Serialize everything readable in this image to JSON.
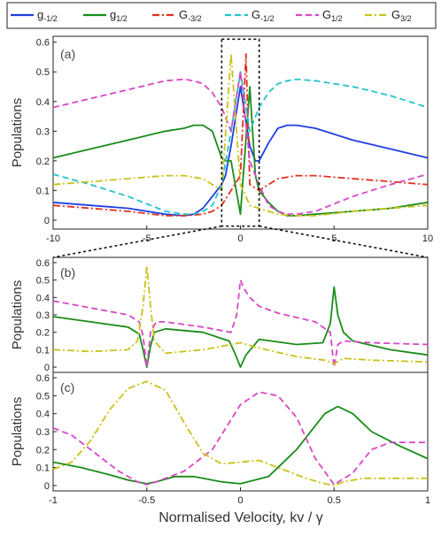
{
  "figure": {
    "xlabel": "Normalised Velocity, kv / γ"
  },
  "legend": [
    {
      "main": "g",
      "sub": "-1/2",
      "color": "#1f3fe0",
      "dash": "solid"
    },
    {
      "main": "g",
      "sub": "1/2",
      "color": "#1a8c1a",
      "dash": "solid"
    },
    {
      "main": "G",
      "sub": "-3/2",
      "color": "#e0301e",
      "dash": "dashdot"
    },
    {
      "main": "G",
      "sub": "-1/2",
      "color": "#22c4cc",
      "dash": "dashed"
    },
    {
      "main": "G",
      "sub": "1/2",
      "color": "#d846c8",
      "dash": "dashed"
    },
    {
      "main": "G",
      "sub": "3/2",
      "color": "#c9c21a",
      "dash": "dashdot"
    }
  ],
  "chart_data": [
    {
      "type": "line",
      "panel": "(a)",
      "ylabel": "Populations",
      "xlim": [
        -10,
        10
      ],
      "ylim": [
        -0.03,
        0.62
      ],
      "xticks": [
        -10,
        -5,
        0,
        5,
        10
      ],
      "yticks": [
        0,
        0.1,
        0.2,
        0.3,
        0.4,
        0.5,
        0.6
      ],
      "ytick_labels": [
        "0",
        "0.1",
        "0.2",
        "0.3",
        "0.4",
        "0.5",
        "0.6"
      ],
      "zoom_box": {
        "x": [
          -1,
          1
        ],
        "y": [
          -0.02,
          0.61
        ]
      },
      "series": [
        {
          "legend_index": 0,
          "x": [
            -10,
            -8,
            -6,
            -4,
            -3,
            -2.5,
            -2,
            -1.5,
            -1,
            -0.8,
            -0.5,
            0,
            0.5,
            0.8,
            1,
            1.5,
            2,
            2.5,
            3,
            4,
            6,
            8,
            10
          ],
          "y": [
            0.06,
            0.05,
            0.04,
            0.02,
            0.015,
            0.02,
            0.04,
            0.08,
            0.12,
            0.15,
            0.25,
            0.45,
            0.25,
            0.2,
            0.2,
            0.26,
            0.31,
            0.32,
            0.32,
            0.31,
            0.27,
            0.24,
            0.21
          ]
        },
        {
          "legend_index": 1,
          "x": [
            -10,
            -8,
            -6,
            -4,
            -3,
            -2.5,
            -2,
            -1.5,
            -1,
            -0.8,
            -0.5,
            0,
            0.5,
            0.8,
            1,
            1.5,
            2,
            2.5,
            3,
            4,
            6,
            8,
            10
          ],
          "y": [
            0.21,
            0.24,
            0.27,
            0.3,
            0.31,
            0.32,
            0.32,
            0.3,
            0.21,
            0.2,
            0.2,
            0.02,
            0.45,
            0.15,
            0.1,
            0.06,
            0.03,
            0.015,
            0.015,
            0.02,
            0.03,
            0.04,
            0.06
          ]
        },
        {
          "legend_index": 2,
          "x": [
            -10,
            -8,
            -6,
            -4,
            -3,
            -2,
            -1.5,
            -1,
            -0.5,
            0,
            0.3,
            0.5,
            1,
            1.5,
            2,
            3,
            4,
            6,
            8,
            10
          ],
          "y": [
            0.05,
            0.04,
            0.03,
            0.015,
            0.015,
            0.02,
            0.03,
            0.05,
            0.1,
            0.15,
            0.56,
            0.12,
            0.1,
            0.12,
            0.14,
            0.15,
            0.15,
            0.14,
            0.13,
            0.12
          ]
        },
        {
          "legend_index": 3,
          "x": [
            -10,
            -8,
            -6,
            -4,
            -3,
            -2.5,
            -2,
            -1.5,
            -1,
            -0.5,
            0,
            0.5,
            1,
            1.5,
            2,
            2.5,
            3,
            4,
            6,
            8,
            10
          ],
          "y": [
            0.155,
            0.12,
            0.08,
            0.03,
            0.02,
            0.02,
            0.03,
            0.05,
            0.12,
            0.3,
            0.5,
            0.3,
            0.38,
            0.43,
            0.46,
            0.47,
            0.475,
            0.47,
            0.45,
            0.42,
            0.38
          ]
        },
        {
          "legend_index": 4,
          "x": [
            -10,
            -8,
            -6,
            -4,
            -3,
            -2.5,
            -2,
            -1.5,
            -1,
            -0.5,
            0,
            0.5,
            1,
            1.5,
            2,
            2.5,
            3,
            4,
            6,
            8,
            10
          ],
          "y": [
            0.38,
            0.41,
            0.44,
            0.47,
            0.475,
            0.47,
            0.46,
            0.43,
            0.38,
            0.3,
            0.5,
            0.2,
            0.12,
            0.05,
            0.03,
            0.02,
            0.02,
            0.03,
            0.08,
            0.12,
            0.155
          ]
        },
        {
          "legend_index": 5,
          "x": [
            -10,
            -8,
            -6,
            -4,
            -3,
            -2,
            -1.5,
            -1,
            -0.5,
            0,
            0.5,
            1,
            1.5,
            2,
            3,
            4,
            6,
            8,
            10
          ],
          "y": [
            0.12,
            0.13,
            0.14,
            0.15,
            0.15,
            0.14,
            0.12,
            0.1,
            0.56,
            0.12,
            0.05,
            0.04,
            0.03,
            0.02,
            0.015,
            0.015,
            0.03,
            0.04,
            0.05
          ]
        }
      ]
    },
    {
      "type": "line",
      "panel": "(b)",
      "ylabel": "Populations",
      "xlim": [
        -1,
        1
      ],
      "ylim": [
        -0.03,
        0.63
      ],
      "yticks": [
        0,
        0.1,
        0.2,
        0.3,
        0.4,
        0.5,
        0.6
      ],
      "ytick_labels": [
        "0",
        "0.1",
        "0.2",
        "0.3",
        "0.4",
        "0.5",
        "0.6"
      ],
      "series": [
        {
          "legend_index": 1,
          "x": [
            -1,
            -0.8,
            -0.6,
            -0.54,
            -0.52,
            -0.5,
            -0.48,
            -0.46,
            -0.4,
            -0.2,
            -0.06,
            -0.03,
            0,
            0.03,
            0.1,
            0.3,
            0.44,
            0.48,
            0.5,
            0.52,
            0.55,
            0.6,
            0.8,
            1
          ],
          "y": [
            0.29,
            0.26,
            0.23,
            0.19,
            0.1,
            0.0,
            0.12,
            0.2,
            0.22,
            0.2,
            0.15,
            0.08,
            0.0,
            0.07,
            0.16,
            0.13,
            0.14,
            0.25,
            0.46,
            0.3,
            0.2,
            0.15,
            0.1,
            0.07
          ]
        },
        {
          "legend_index": 4,
          "x": [
            -1,
            -0.8,
            -0.6,
            -0.54,
            -0.52,
            -0.5,
            -0.48,
            -0.45,
            -0.4,
            -0.2,
            -0.05,
            -0.02,
            0,
            0.02,
            0.05,
            0.1,
            0.2,
            0.4,
            0.48,
            0.5,
            0.52,
            0.55,
            0.7,
            1
          ],
          "y": [
            0.38,
            0.34,
            0.3,
            0.26,
            0.18,
            0.0,
            0.2,
            0.26,
            0.26,
            0.23,
            0.2,
            0.3,
            0.5,
            0.45,
            0.4,
            0.35,
            0.31,
            0.26,
            0.2,
            0.0,
            0.13,
            0.15,
            0.14,
            0.13
          ]
        },
        {
          "legend_index": 5,
          "x": [
            -1,
            -0.8,
            -0.6,
            -0.55,
            -0.52,
            -0.5,
            -0.48,
            -0.46,
            -0.4,
            -0.2,
            -0.05,
            0,
            0.1,
            0.3,
            0.45,
            0.5,
            0.55,
            0.7,
            1
          ],
          "y": [
            0.1,
            0.09,
            0.1,
            0.15,
            0.35,
            0.58,
            0.35,
            0.15,
            0.08,
            0.1,
            0.13,
            0.14,
            0.11,
            0.06,
            0.04,
            0.02,
            0.05,
            0.04,
            0.03
          ]
        }
      ]
    },
    {
      "type": "line",
      "panel": "(c)",
      "ylabel": "Populations",
      "xlim": [
        -1,
        1
      ],
      "ylim": [
        -0.03,
        0.63
      ],
      "xticks": [
        -1,
        -0.5,
        0,
        0.5,
        1
      ],
      "xtick_labels": [
        "-1",
        "-0.5",
        "0",
        "0.5",
        "1"
      ],
      "yticks": [
        0,
        0.1,
        0.2,
        0.3,
        0.4,
        0.5,
        0.6
      ],
      "ytick_labels": [
        "0",
        "0.1",
        "0.2",
        "0.3",
        "0.4",
        "0.5",
        "0.6"
      ],
      "series": [
        {
          "legend_index": 1,
          "x": [
            -1,
            -0.85,
            -0.7,
            -0.6,
            -0.5,
            -0.45,
            -0.35,
            -0.25,
            -0.1,
            0,
            0.15,
            0.3,
            0.45,
            0.52,
            0.6,
            0.7,
            0.85,
            1
          ],
          "y": [
            0.13,
            0.1,
            0.06,
            0.03,
            0.01,
            0.02,
            0.05,
            0.05,
            0.02,
            0.01,
            0.05,
            0.2,
            0.4,
            0.44,
            0.4,
            0.3,
            0.22,
            0.15
          ]
        },
        {
          "legend_index": 4,
          "x": [
            -1,
            -0.9,
            -0.8,
            -0.65,
            -0.55,
            -0.5,
            -0.45,
            -0.3,
            -0.15,
            0,
            0.1,
            0.2,
            0.3,
            0.4,
            0.5,
            0.6,
            0.7,
            0.8,
            1
          ],
          "y": [
            0.32,
            0.28,
            0.2,
            0.08,
            0.02,
            0.005,
            0.02,
            0.08,
            0.2,
            0.45,
            0.52,
            0.5,
            0.38,
            0.15,
            0.005,
            0.07,
            0.2,
            0.24,
            0.24
          ]
        },
        {
          "legend_index": 5,
          "x": [
            -1,
            -0.9,
            -0.8,
            -0.7,
            -0.6,
            -0.5,
            -0.4,
            -0.3,
            -0.2,
            -0.1,
            0,
            0.1,
            0.2,
            0.35,
            0.45,
            0.5,
            0.55,
            0.65,
            0.8,
            1
          ],
          "y": [
            0.09,
            0.13,
            0.25,
            0.42,
            0.54,
            0.58,
            0.53,
            0.35,
            0.18,
            0.12,
            0.13,
            0.14,
            0.1,
            0.04,
            0.01,
            0.0,
            0.02,
            0.04,
            0.04,
            0.04
          ]
        }
      ]
    }
  ]
}
